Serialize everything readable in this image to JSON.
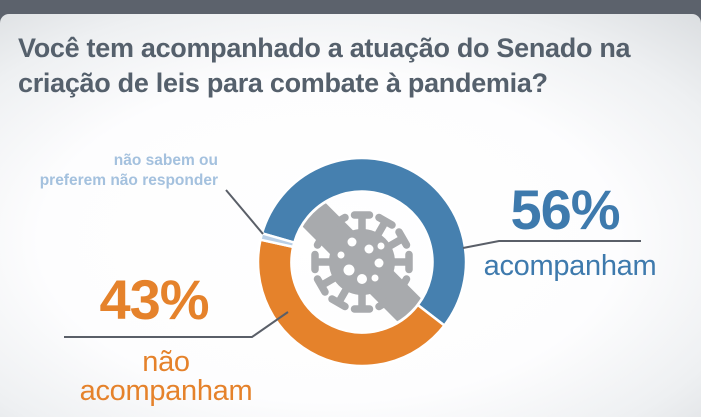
{
  "header": {
    "title_lines": [
      "Você tem acompanhado a atuação do Senado na",
      "criação de leis para combate à pandemia?"
    ],
    "title_full": "Você tem acompanhado a atuação do Senado na criação de leis para combate à pandemia?"
  },
  "chart_data": {
    "type": "pie",
    "variant": "donut",
    "title": "Você tem acompanhado a atuação do Senado na criação de leis para combate à pandemia?",
    "unit": "%",
    "segments": [
      {
        "id": "acompanham",
        "label": "acompanham",
        "pct": 56,
        "pct_label": "56%",
        "color": "#4680af"
      },
      {
        "id": "nao-acompanham",
        "label": "não acompanham",
        "pct": 43,
        "pct_label": "43%",
        "color": "#e5822b"
      },
      {
        "id": "nao-sabem",
        "label": "não sabem ou preferem não responder",
        "label_lines": [
          "não sabem ou",
          "preferem não responder"
        ],
        "pct": 1,
        "color": "#b9cfe6"
      }
    ],
    "layout": {
      "start_angle_deg_clockwise_from_top": 286,
      "clockwise": true,
      "labels": "callout",
      "legend_position": "none",
      "center_icon": "coronavirus"
    }
  },
  "colors": {
    "top_bar": "#5c626c",
    "title_text": "#55606c",
    "blue_text": "#3e7aad",
    "orange_text": "#e5822b",
    "light_blue_text": "#a4c1de",
    "connector_line": "#5a5f68",
    "virus_gray": "#a8aaad",
    "segment_divider": "#ffffff"
  }
}
